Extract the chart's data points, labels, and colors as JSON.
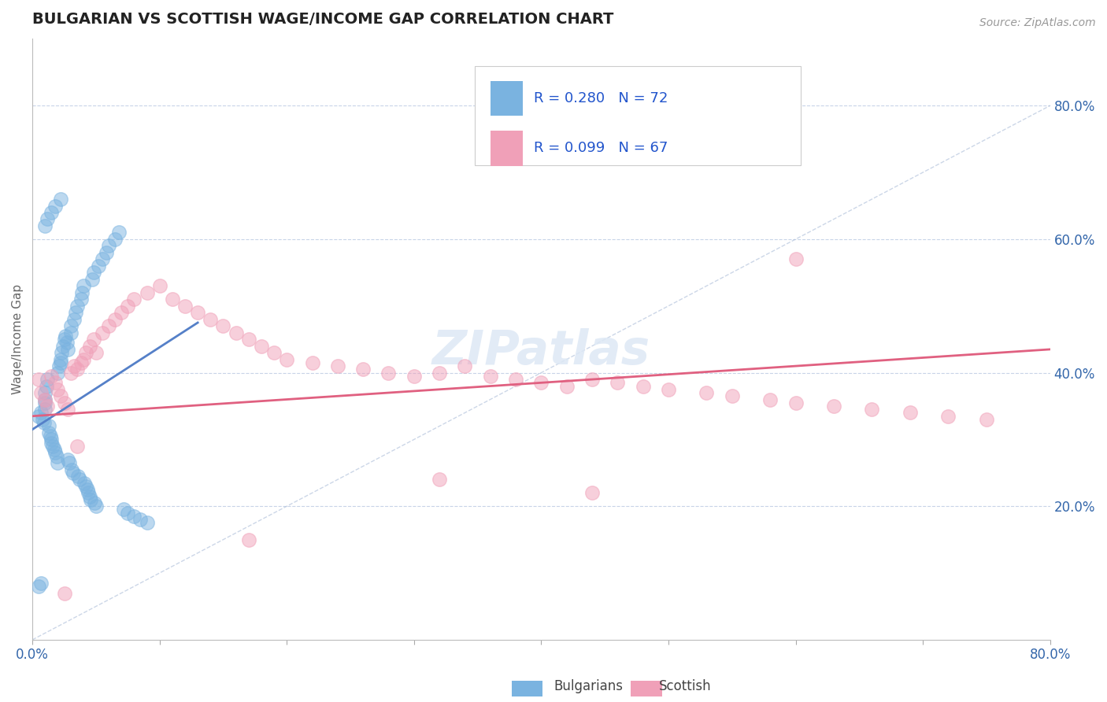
{
  "title": "BULGARIAN VS SCOTTISH WAGE/INCOME GAP CORRELATION CHART",
  "source_text": "Source: ZipAtlas.com",
  "ylabel": "Wage/Income Gap",
  "bg_color": "#ffffff",
  "grid_color": "#c8d4e8",
  "bulgarian_color": "#7ab3e0",
  "scottish_color": "#f0a0b8",
  "legend_color": "#2255cc",
  "bulgarian_R": 0.28,
  "bulgarian_N": 72,
  "scottish_R": 0.099,
  "scottish_N": 67,
  "xlim": [
    0.0,
    0.8
  ],
  "ylim": [
    0.0,
    0.9
  ],
  "yticks_right": [
    0.2,
    0.4,
    0.6,
    0.8
  ],
  "ytick_right_labels": [
    "20.0%",
    "40.0%",
    "60.0%",
    "80.0%"
  ],
  "xticks": [
    0.0,
    0.1,
    0.2,
    0.3,
    0.4,
    0.5,
    0.6,
    0.7,
    0.8
  ],
  "xticklabels": [
    "0.0%",
    "",
    "",
    "",
    "",
    "",
    "",
    "",
    "80.0%"
  ],
  "blue_trend_x": [
    0.0,
    0.13
  ],
  "blue_trend_y": [
    0.315,
    0.475
  ],
  "pink_trend_x": [
    0.0,
    0.8
  ],
  "pink_trend_y": [
    0.335,
    0.435
  ],
  "ref_line_x": [
    0.0,
    0.9
  ],
  "ref_line_y": [
    0.0,
    0.9
  ],
  "blue_x": [
    0.005,
    0.007,
    0.008,
    0.009,
    0.01,
    0.01,
    0.01,
    0.01,
    0.011,
    0.012,
    0.013,
    0.013,
    0.014,
    0.015,
    0.015,
    0.016,
    0.017,
    0.018,
    0.019,
    0.02,
    0.02,
    0.021,
    0.022,
    0.022,
    0.023,
    0.024,
    0.025,
    0.026,
    0.027,
    0.028,
    0.028,
    0.029,
    0.03,
    0.03,
    0.031,
    0.032,
    0.033,
    0.034,
    0.035,
    0.036,
    0.037,
    0.038,
    0.039,
    0.04,
    0.041,
    0.042,
    0.043,
    0.044,
    0.045,
    0.046,
    0.047,
    0.048,
    0.049,
    0.05,
    0.052,
    0.055,
    0.058,
    0.06,
    0.065,
    0.068,
    0.072,
    0.075,
    0.08,
    0.085,
    0.09,
    0.01,
    0.012,
    0.015,
    0.018,
    0.022,
    0.005,
    0.007
  ],
  "blue_y": [
    0.335,
    0.34,
    0.33,
    0.325,
    0.345,
    0.355,
    0.36,
    0.37,
    0.38,
    0.39,
    0.32,
    0.31,
    0.305,
    0.3,
    0.295,
    0.29,
    0.285,
    0.28,
    0.275,
    0.265,
    0.4,
    0.41,
    0.42,
    0.415,
    0.43,
    0.44,
    0.45,
    0.455,
    0.445,
    0.435,
    0.27,
    0.265,
    0.46,
    0.47,
    0.255,
    0.25,
    0.48,
    0.49,
    0.5,
    0.245,
    0.24,
    0.51,
    0.52,
    0.53,
    0.235,
    0.23,
    0.225,
    0.22,
    0.215,
    0.21,
    0.54,
    0.55,
    0.205,
    0.2,
    0.56,
    0.57,
    0.58,
    0.59,
    0.6,
    0.61,
    0.195,
    0.19,
    0.185,
    0.18,
    0.175,
    0.62,
    0.63,
    0.64,
    0.65,
    0.66,
    0.08,
    0.085
  ],
  "pink_x": [
    0.005,
    0.007,
    0.01,
    0.012,
    0.015,
    0.018,
    0.02,
    0.022,
    0.025,
    0.028,
    0.03,
    0.033,
    0.035,
    0.038,
    0.04,
    0.042,
    0.045,
    0.048,
    0.05,
    0.055,
    0.06,
    0.065,
    0.07,
    0.075,
    0.08,
    0.09,
    0.1,
    0.11,
    0.12,
    0.13,
    0.14,
    0.15,
    0.16,
    0.17,
    0.18,
    0.19,
    0.2,
    0.22,
    0.24,
    0.26,
    0.28,
    0.3,
    0.32,
    0.34,
    0.36,
    0.38,
    0.4,
    0.42,
    0.44,
    0.46,
    0.48,
    0.5,
    0.53,
    0.55,
    0.58,
    0.6,
    0.63,
    0.66,
    0.69,
    0.72,
    0.75,
    0.32,
    0.17,
    0.44,
    0.6,
    0.035,
    0.025
  ],
  "pink_y": [
    0.39,
    0.37,
    0.36,
    0.35,
    0.395,
    0.385,
    0.375,
    0.365,
    0.355,
    0.345,
    0.4,
    0.41,
    0.405,
    0.415,
    0.42,
    0.43,
    0.44,
    0.45,
    0.43,
    0.46,
    0.47,
    0.48,
    0.49,
    0.5,
    0.51,
    0.52,
    0.53,
    0.51,
    0.5,
    0.49,
    0.48,
    0.47,
    0.46,
    0.45,
    0.44,
    0.43,
    0.42,
    0.415,
    0.41,
    0.405,
    0.4,
    0.395,
    0.4,
    0.41,
    0.395,
    0.39,
    0.385,
    0.38,
    0.39,
    0.385,
    0.38,
    0.375,
    0.37,
    0.365,
    0.36,
    0.355,
    0.35,
    0.345,
    0.34,
    0.335,
    0.33,
    0.24,
    0.15,
    0.22,
    0.57,
    0.29,
    0.07
  ]
}
